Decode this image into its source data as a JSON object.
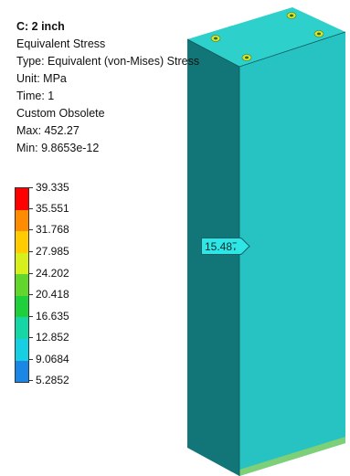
{
  "info": {
    "title": "C: 2 inch",
    "result": "Equivalent Stress",
    "type": "Type: Equivalent (von-Mises) Stress",
    "unit": "Unit: MPa",
    "time": "Time: 1",
    "status": "Custom Obsolete",
    "max": "Max: 452.27",
    "min": "Min: 9.8653e-12"
  },
  "legend": {
    "labels": [
      "39.335",
      "35.551",
      "31.768",
      "27.985",
      "24.202",
      "20.418",
      "16.635",
      "12.852",
      "9.0684",
      "5.2852"
    ],
    "colors": [
      "#ff0000",
      "#ff8c00",
      "#ffcc00",
      "#d7ef1a",
      "#63d62e",
      "#1fcf3c",
      "#17d6a6",
      "#16cfe3",
      "#1a86e6",
      "#0000ff"
    ]
  },
  "probe": {
    "value": "15.487"
  },
  "colors": {
    "front_face": "#27c2c2",
    "side_face": "#127678",
    "top_face": "#2ed0cc",
    "bottom_edge": "#7dcf78",
    "bolt": "#d8e22a"
  }
}
